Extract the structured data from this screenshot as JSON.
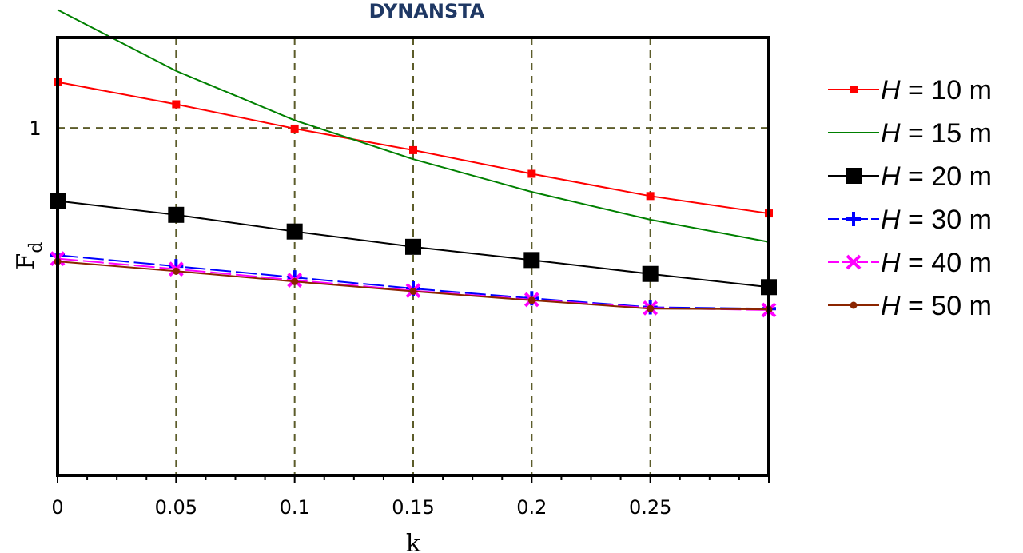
{
  "chart_data": {
    "type": "line",
    "title": "DYNANSTA",
    "xlabel": "k",
    "ylabel": "F",
    "ylabel_sub": "d",
    "xlim": [
      0,
      0.3
    ],
    "ylim": [
      0.5,
      1.13
    ],
    "grid": true,
    "legend_position": "right",
    "x_ticks": [
      0,
      0.05,
      0.1,
      0.15,
      0.2,
      0.25
    ],
    "x_tick_labels": [
      "0",
      "0.05",
      "0.1",
      "0.15",
      "0.2",
      "0.25"
    ],
    "y_ticks": [
      1
    ],
    "y_tick_labels": [
      "1"
    ],
    "series": [
      {
        "name": "H = 10 m",
        "legend_var": "H",
        "legend_rest": " = 10 m",
        "color": "#ff0000",
        "marker": "square-small",
        "line": "solid",
        "x": [
          0,
          0.05,
          0.1,
          0.15,
          0.2,
          0.25,
          0.3
        ],
        "y": [
          1.066,
          1.034,
          0.999,
          0.968,
          0.934,
          0.902,
          0.877
        ]
      },
      {
        "name": "H = 15 m",
        "legend_var": "H",
        "legend_rest": " = 15 m",
        "color": "#008000",
        "marker": "none",
        "line": "solid",
        "x": [
          0,
          0.05,
          0.1,
          0.15,
          0.2,
          0.25,
          0.3
        ],
        "y": [
          1.17,
          1.082,
          1.011,
          0.955,
          0.908,
          0.868,
          0.836
        ]
      },
      {
        "name": "H = 20 m",
        "legend_var": "H",
        "legend_rest": " = 20 m",
        "color": "#000000",
        "marker": "square-large",
        "line": "solid",
        "x": [
          0,
          0.05,
          0.1,
          0.15,
          0.2,
          0.25,
          0.3
        ],
        "y": [
          0.895,
          0.875,
          0.851,
          0.829,
          0.81,
          0.79,
          0.771
        ]
      },
      {
        "name": "H = 30 m",
        "legend_var": "H",
        "legend_rest": " = 30 m",
        "color": "#0000ff",
        "marker": "plus",
        "line": "dashed",
        "x": [
          0,
          0.05,
          0.1,
          0.15,
          0.2,
          0.25,
          0.3
        ],
        "y": [
          0.817,
          0.801,
          0.785,
          0.769,
          0.755,
          0.742,
          0.74
        ]
      },
      {
        "name": "H = 40 m",
        "legend_var": "H",
        "legend_rest": " = 40 m",
        "color": "#ff00ff",
        "marker": "x",
        "line": "dashed",
        "x": [
          0,
          0.05,
          0.1,
          0.15,
          0.2,
          0.25,
          0.3
        ],
        "y": [
          0.812,
          0.797,
          0.781,
          0.766,
          0.753,
          0.741,
          0.738
        ]
      },
      {
        "name": "H = 50 m",
        "legend_var": "H",
        "legend_rest": " = 50 m",
        "color": "#8b2500",
        "marker": "circle",
        "line": "solid",
        "x": [
          0,
          0.05,
          0.1,
          0.15,
          0.2,
          0.25,
          0.3
        ],
        "y": [
          0.808,
          0.794,
          0.779,
          0.765,
          0.752,
          0.74,
          0.739
        ]
      }
    ]
  }
}
